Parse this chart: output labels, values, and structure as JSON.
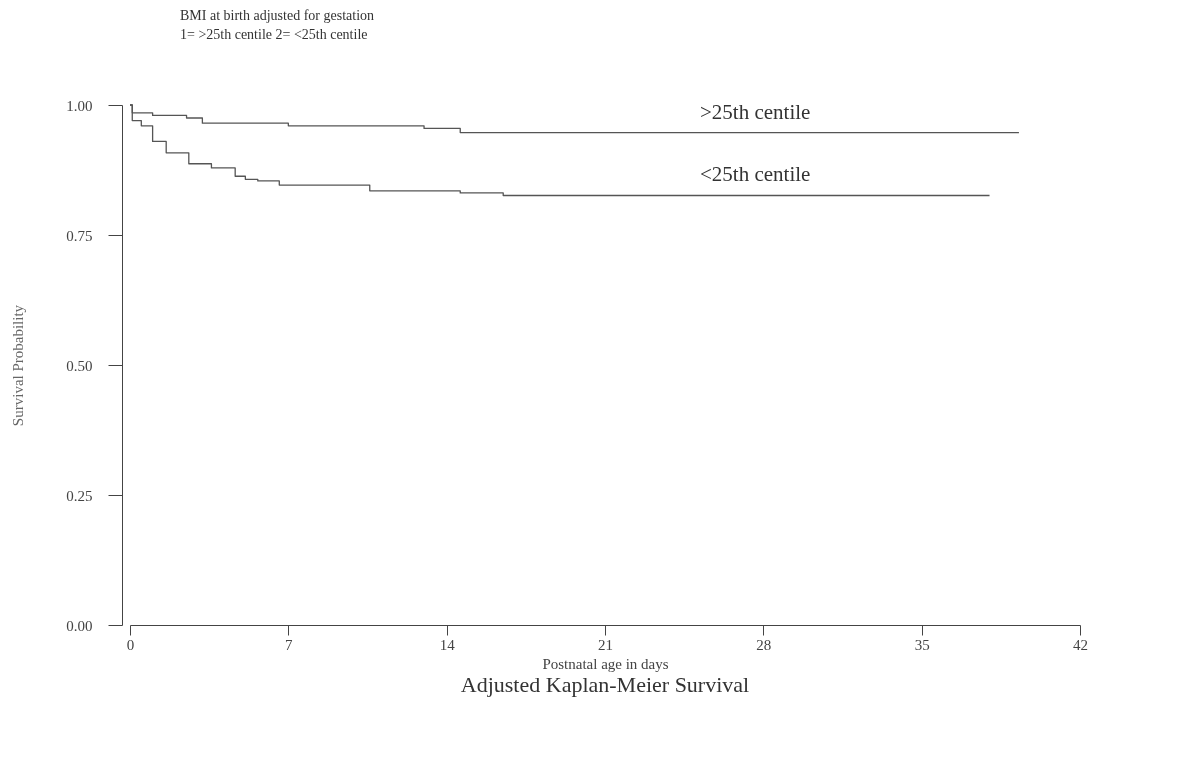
{
  "chart_data": {
    "type": "step",
    "title": "Adjusted Kaplan-Meier Survival",
    "xlabel": "Postnatal age in days",
    "ylabel": "Survival Probability",
    "annotations": [
      "BMI at birth adjusted for gestation",
      "1= >25th centile 2= <25th centile"
    ],
    "series": [
      {
        "name": ">25th centile",
        "color": "#555555",
        "x": [
          0,
          0.1,
          1,
          2.5,
          3.2,
          7,
          13,
          14.6,
          39.3
        ],
        "values": [
          1,
          0.985,
          0.98,
          0.975,
          0.965,
          0.96,
          0.955,
          0.947,
          0.947
        ]
      },
      {
        "name": "<25th centile",
        "color": "#555555",
        "x": [
          0,
          0.1,
          0.5,
          1,
          1.6,
          2.6,
          3.6,
          4.65,
          5.1,
          5.65,
          6.6,
          10.6,
          14.6,
          16.5,
          38
        ],
        "values": [
          1,
          0.97,
          0.96,
          0.93,
          0.908,
          0.887,
          0.879,
          0.863,
          0.857,
          0.854,
          0.846,
          0.835,
          0.831,
          0.826,
          0.826
        ]
      }
    ],
    "xlim": [
      0,
      42
    ],
    "xticks": [
      0,
      7,
      14,
      21,
      28,
      35,
      42
    ],
    "ylim": [
      0,
      1
    ],
    "yticks": [
      {
        "value": 0,
        "label": "0.00"
      },
      {
        "value": 0.25,
        "label": "0.25"
      },
      {
        "value": 0.5,
        "label": "0.50"
      },
      {
        "value": 0.75,
        "label": "0.75"
      },
      {
        "value": 1,
        "label": "1.00"
      }
    ],
    "grid": false
  }
}
